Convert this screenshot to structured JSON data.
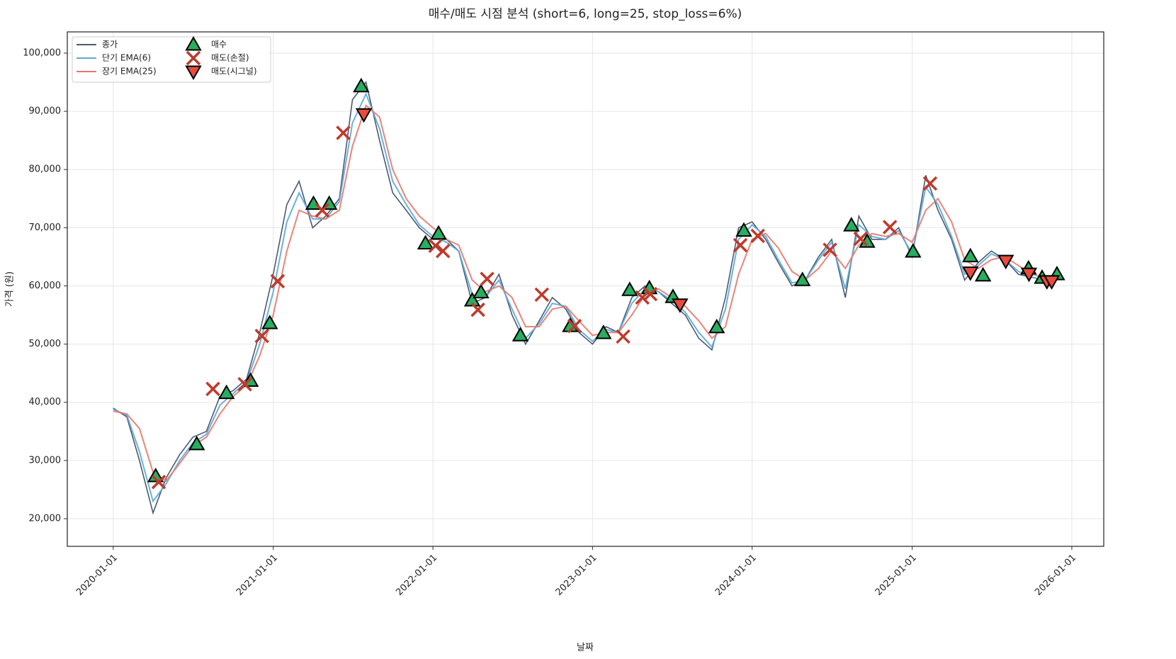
{
  "chart_data": {
    "type": "line",
    "title": "매수/매도 시점 분석 (short=6, long=25, stop_loss=6%)",
    "xlabel": "날짜",
    "ylabel": "가격 (원)",
    "grid": true,
    "legend": "upper left",
    "xlim": [
      "2019-09-18",
      "2026-03-15"
    ],
    "xticks": [
      "2020-01-01",
      "2021-01-01",
      "2022-01-01",
      "2023-01-01",
      "2024-01-01",
      "2025-01-01",
      "2026-01-01"
    ],
    "ylim": [
      15250,
      103650
    ],
    "yticks": [
      {
        "value": 20000,
        "label": "20,000"
      },
      {
        "value": 30000,
        "label": "30,000"
      },
      {
        "value": 40000,
        "label": "40,000"
      },
      {
        "value": 50000,
        "label": "50,000"
      },
      {
        "value": 60000,
        "label": "60,000"
      },
      {
        "value": 70000,
        "label": "70,000"
      },
      {
        "value": 80000,
        "label": "80,000"
      },
      {
        "value": 90000,
        "label": "90,000"
      },
      {
        "value": 100000,
        "label": "100,000"
      }
    ],
    "x": [
      "2020-01-01",
      "2020-02-01",
      "2020-03-01",
      "2020-04-01",
      "2020-05-01",
      "2020-06-01",
      "2020-07-01",
      "2020-08-01",
      "2020-09-01",
      "2020-10-01",
      "2020-11-01",
      "2020-12-01",
      "2021-01-01",
      "2021-02-01",
      "2021-03-01",
      "2021-04-01",
      "2021-05-01",
      "2021-06-01",
      "2021-07-01",
      "2021-08-01",
      "2021-09-01",
      "2021-10-01",
      "2021-11-01",
      "2021-12-01",
      "2022-01-01",
      "2022-02-01",
      "2022-03-01",
      "2022-04-01",
      "2022-05-01",
      "2022-06-01",
      "2022-07-01",
      "2022-08-01",
      "2022-09-01",
      "2022-10-01",
      "2022-11-01",
      "2022-12-01",
      "2023-01-01",
      "2023-02-01",
      "2023-03-01",
      "2023-04-01",
      "2023-05-01",
      "2023-06-01",
      "2023-07-01",
      "2023-08-01",
      "2023-09-01",
      "2023-10-01",
      "2023-11-01",
      "2023-12-01",
      "2024-01-01",
      "2024-02-01",
      "2024-03-01",
      "2024-04-01",
      "2024-05-01",
      "2024-06-01",
      "2024-07-01",
      "2024-08-01",
      "2024-09-01",
      "2024-10-01",
      "2024-11-01",
      "2024-12-01",
      "2025-01-01",
      "2025-02-01",
      "2025-03-01",
      "2025-04-01",
      "2025-05-01",
      "2025-06-01",
      "2025-07-01",
      "2025-08-01",
      "2025-09-01",
      "2025-10-01",
      "2025-11-01",
      "2025-12-01"
    ],
    "series": [
      {
        "name": "종가",
        "color": "#4a5a70",
        "values": [
          39000,
          37500,
          30000,
          21000,
          27000,
          31000,
          34000,
          35000,
          41000,
          42000,
          44000,
          52000,
          62000,
          74000,
          78000,
          70000,
          72000,
          75000,
          92000,
          95000,
          85000,
          76000,
          73000,
          70000,
          68000,
          68000,
          66000,
          57000,
          58000,
          62000,
          55000,
          50000,
          54000,
          58000,
          56000,
          52000,
          50000,
          53000,
          52000,
          58000,
          60000,
          59000,
          57000,
          55000,
          51000,
          49000,
          58000,
          70000,
          71000,
          68000,
          64000,
          60000,
          61000,
          65000,
          68000,
          58000,
          72000,
          68000,
          68000,
          70000,
          65000,
          79000,
          73000,
          68000,
          61000,
          64000,
          66000,
          64500,
          62000,
          61500,
          61000,
          61500
        ]
      },
      {
        "name": "단기 EMA(6)",
        "color": "#5aa9d8",
        "values": [
          38800,
          37800,
          31500,
          23000,
          26000,
          30000,
          33000,
          34500,
          39500,
          41500,
          43500,
          50000,
          59000,
          71000,
          76000,
          71500,
          71500,
          74500,
          88000,
          93000,
          87000,
          78000,
          74000,
          70500,
          68500,
          67500,
          66000,
          58500,
          58000,
          61000,
          56000,
          51000,
          53500,
          57000,
          56500,
          52500,
          50500,
          52500,
          52000,
          57000,
          59500,
          59000,
          57500,
          55500,
          52000,
          49500,
          56000,
          68000,
          70500,
          68500,
          64500,
          60500,
          61000,
          64500,
          67500,
          59500,
          70500,
          68500,
          68000,
          69500,
          65500,
          77000,
          74000,
          68500,
          62000,
          63500,
          65500,
          64500,
          62500,
          61500,
          61000,
          61300
        ]
      },
      {
        "name": "장기 EMA(25)",
        "color": "#e8776c",
        "values": [
          38500,
          38000,
          35500,
          28000,
          26500,
          29500,
          32500,
          34000,
          38000,
          41000,
          43000,
          48000,
          55000,
          66000,
          73000,
          72000,
          71500,
          73000,
          84000,
          91000,
          89000,
          80000,
          75000,
          72000,
          70000,
          68000,
          67000,
          61000,
          59000,
          60000,
          58000,
          53000,
          53000,
          56000,
          56500,
          54000,
          51500,
          52000,
          52000,
          55000,
          58500,
          59500,
          58000,
          56500,
          54000,
          51000,
          53000,
          62000,
          68000,
          69000,
          66500,
          62500,
          61000,
          63000,
          66000,
          63000,
          67000,
          69000,
          68500,
          69000,
          67500,
          73000,
          75000,
          71000,
          64500,
          63000,
          64500,
          65000,
          63500,
          62000,
          61500,
          61200
        ]
      }
    ],
    "markers": [
      {
        "name": "매수",
        "marker": "triangle-up",
        "color": "#27ae60",
        "x": [
          "2020-04-07",
          "2020-07-10",
          "2020-09-16",
          "2020-11-10",
          "2020-12-24",
          "2021-04-03",
          "2021-05-09",
          "2021-07-21",
          "2021-12-15",
          "2022-01-14",
          "2022-04-01",
          "2022-04-21",
          "2022-07-20",
          "2022-11-11",
          "2023-01-26",
          "2023-03-27",
          "2023-05-11",
          "2023-07-04",
          "2023-10-12",
          "2023-12-13",
          "2024-04-25",
          "2024-08-15",
          "2024-09-20",
          "2025-01-03",
          "2025-05-14",
          "2025-06-12",
          "2025-09-24",
          "2025-10-25",
          "2025-11-28"
        ],
        "values": [
          27300,
          32800,
          41600,
          43700,
          53600,
          74100,
          74100,
          94300,
          67300,
          69000,
          57500,
          58900,
          51500,
          53100,
          51900,
          59300,
          59600,
          58100,
          52900,
          69500,
          61000,
          70400,
          67600,
          65900,
          65100,
          61800,
          63000,
          61400,
          62000
        ]
      },
      {
        "name": "매도(손절)",
        "marker": "x",
        "color": "#c0392b",
        "x": [
          "2020-04-14",
          "2020-08-16",
          "2020-10-28",
          "2020-12-06",
          "2021-01-11",
          "2021-04-23",
          "2021-06-10",
          "2022-01-07",
          "2022-01-24",
          "2022-04-14",
          "2022-05-05",
          "2022-09-07",
          "2022-11-21",
          "2023-03-12",
          "2023-04-25",
          "2023-05-13",
          "2023-12-05",
          "2024-01-14",
          "2024-06-27",
          "2024-09-05",
          "2024-11-11",
          "2025-02-11"
        ],
        "values": [
          26300,
          42300,
          43100,
          51400,
          60800,
          73000,
          86300,
          66900,
          66000,
          55900,
          61200,
          58500,
          53100,
          51300,
          58000,
          58600,
          67000,
          68600,
          66200,
          68100,
          70100,
          77600
        ]
      },
      {
        "name": "매도(시그널)",
        "marker": "triangle-down",
        "color": "#e74c3c",
        "x": [
          "2021-07-27",
          "2023-07-20",
          "2025-05-14",
          "2025-08-03",
          "2025-09-25",
          "2025-11-05",
          "2025-11-16"
        ],
        "values": [
          89500,
          56800,
          62300,
          64300,
          62100,
          60800,
          60800
        ]
      }
    ]
  }
}
